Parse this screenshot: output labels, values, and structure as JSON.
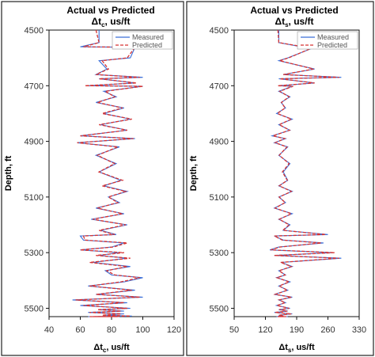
{
  "chart_data": [
    {
      "type": "line",
      "title": "Actual vs Predicted",
      "subtitle": "Δtc, us/ft",
      "xlabel": "Δtc, us/ft",
      "ylabel": "Depth, ft",
      "xlim": [
        40,
        120
      ],
      "ylim": [
        5530,
        4500
      ],
      "x_ticks": [
        40,
        60,
        80,
        100,
        120
      ],
      "y_ticks": [
        4500,
        4700,
        4900,
        5100,
        5300,
        5500
      ],
      "legend_position": "top-right",
      "series": [
        {
          "name": "Measured",
          "color": "#3b6fd8",
          "style": "solid",
          "x": [
            72,
            72,
            60,
            95,
            92,
            72,
            77,
            70,
            100,
            72,
            95,
            65,
            100,
            75,
            83,
            70,
            88,
            75,
            92,
            73,
            90,
            60,
            95,
            58,
            85,
            70,
            83,
            72,
            86,
            75,
            90,
            78,
            85,
            70,
            88,
            67,
            90,
            73,
            83,
            60,
            62,
            88,
            80,
            60,
            85,
            72,
            90,
            68,
            92,
            76,
            80,
            100,
            88,
            65,
            95,
            70,
            100,
            55,
            90,
            60,
            92,
            72,
            88,
            65,
            88,
            75,
            93,
            68,
            85,
            70,
            80,
            65,
            78
          ],
          "y": [
            4500,
            4545,
            4560,
            4562,
            4600,
            4610,
            4640,
            4660,
            4670,
            4675,
            4690,
            4700,
            4702,
            4720,
            4740,
            4760,
            4780,
            4800,
            4820,
            4840,
            4860,
            4880,
            4890,
            4905,
            4920,
            4950,
            4980,
            5010,
            5040,
            5060,
            5080,
            5100,
            5120,
            5140,
            5160,
            5180,
            5200,
            5220,
            5235,
            5240,
            5255,
            5265,
            5280,
            5290,
            5300,
            5310,
            5320,
            5335,
            5350,
            5365,
            5380,
            5390,
            5405,
            5420,
            5435,
            5450,
            5460,
            5470,
            5480,
            5490,
            5500,
            5505,
            5510,
            5515,
            5520,
            5525,
            5528,
            5530,
            5530,
            5530,
            5530,
            5530,
            5530
          ]
        },
        {
          "name": "Predicted",
          "color": "#d63333",
          "style": "dashed",
          "x": [
            70,
            72,
            62,
            95,
            90,
            74,
            78,
            70,
            98,
            72,
            96,
            63,
            100,
            76,
            82,
            71,
            87,
            74,
            93,
            72,
            90,
            60,
            94,
            58,
            84,
            71,
            82,
            72,
            87,
            74,
            89,
            78,
            84,
            71,
            87,
            68,
            89,
            72,
            82,
            62,
            63,
            90,
            81,
            60,
            88,
            70,
            92,
            66,
            90,
            77,
            82,
            98,
            86,
            66,
            93,
            70,
            98,
            57,
            88,
            62,
            90,
            71,
            86,
            66,
            86,
            74,
            92,
            68,
            84,
            70,
            80,
            66,
            78
          ],
          "y": [
            4500,
            4545,
            4560,
            4562,
            4600,
            4610,
            4640,
            4660,
            4670,
            4675,
            4690,
            4700,
            4702,
            4720,
            4740,
            4760,
            4780,
            4800,
            4820,
            4840,
            4860,
            4880,
            4890,
            4905,
            4920,
            4950,
            4980,
            5010,
            5040,
            5060,
            5080,
            5100,
            5120,
            5140,
            5160,
            5180,
            5200,
            5220,
            5235,
            5240,
            5255,
            5265,
            5280,
            5290,
            5300,
            5310,
            5320,
            5335,
            5350,
            5365,
            5380,
            5390,
            5405,
            5420,
            5435,
            5450,
            5460,
            5470,
            5480,
            5490,
            5500,
            5505,
            5510,
            5515,
            5520,
            5525,
            5528,
            5530,
            5530,
            5530,
            5530,
            5530,
            5530
          ]
        }
      ]
    },
    {
      "type": "line",
      "title": "Actual vs Predicted",
      "subtitle": "Δts, us/ft",
      "xlabel": "Δts, us/ft",
      "ylabel": "Depth, ft",
      "xlim": [
        50,
        330
      ],
      "ylim": [
        5530,
        4500
      ],
      "x_ticks": [
        50,
        120,
        190,
        260,
        330
      ],
      "y_ticks": [
        4500,
        4700,
        4900,
        5100,
        5300,
        5500
      ],
      "legend_position": "top-right",
      "series": [
        {
          "name": "Measured",
          "color": "#3b6fd8",
          "style": "solid",
          "x": [
            150,
            150,
            200,
            230,
            170,
            150,
            230,
            160,
            290,
            150,
            230,
            150,
            180,
            150,
            175,
            155,
            165,
            145,
            180,
            150,
            175,
            135,
            165,
            140,
            170,
            150,
            175,
            160,
            170,
            150,
            180,
            150,
            165,
            140,
            180,
            150,
            175,
            160,
            260,
            140,
            160,
            250,
            150,
            130,
            270,
            140,
            290,
            155,
            180,
            150,
            165,
            145,
            175,
            150,
            170,
            140,
            180,
            150,
            165,
            145,
            175,
            150,
            170,
            140,
            180,
            150,
            160,
            145,
            170,
            150,
            165,
            150,
            160
          ],
          "y": [
            4500,
            4545,
            4560,
            4562,
            4600,
            4610,
            4640,
            4660,
            4670,
            4675,
            4690,
            4700,
            4702,
            4720,
            4740,
            4760,
            4780,
            4800,
            4820,
            4840,
            4860,
            4880,
            4890,
            4905,
            4920,
            4950,
            4980,
            5010,
            5040,
            5060,
            5080,
            5100,
            5120,
            5140,
            5160,
            5180,
            5200,
            5220,
            5235,
            5240,
            5255,
            5265,
            5280,
            5290,
            5300,
            5310,
            5320,
            5335,
            5350,
            5365,
            5380,
            5390,
            5405,
            5420,
            5435,
            5450,
            5460,
            5470,
            5480,
            5490,
            5500,
            5505,
            5510,
            5515,
            5520,
            5525,
            5528,
            5530,
            5530,
            5530,
            5530,
            5530,
            5530
          ]
        },
        {
          "name": "Predicted",
          "color": "#d63333",
          "style": "dashed",
          "x": [
            148,
            150,
            205,
            228,
            172,
            152,
            228,
            160,
            285,
            152,
            230,
            148,
            182,
            152,
            173,
            156,
            164,
            147,
            178,
            151,
            174,
            137,
            163,
            142,
            168,
            151,
            173,
            158,
            169,
            151,
            178,
            151,
            164,
            142,
            178,
            151,
            173,
            159,
            255,
            140,
            158,
            245,
            152,
            132,
            275,
            140,
            285,
            154,
            178,
            151,
            164,
            146,
            173,
            151,
            169,
            142,
            178,
            151,
            164,
            146,
            173,
            151,
            169,
            142,
            178,
            151,
            160,
            146,
            168,
            151,
            164,
            151,
            160
          ],
          "y": [
            4500,
            4545,
            4560,
            4562,
            4600,
            4610,
            4640,
            4660,
            4670,
            4675,
            4690,
            4700,
            4702,
            4720,
            4740,
            4760,
            4780,
            4800,
            4820,
            4840,
            4860,
            4880,
            4890,
            4905,
            4920,
            4950,
            4980,
            5010,
            5040,
            5060,
            5080,
            5100,
            5120,
            5140,
            5160,
            5180,
            5200,
            5220,
            5235,
            5240,
            5255,
            5265,
            5280,
            5290,
            5300,
            5310,
            5320,
            5335,
            5350,
            5365,
            5380,
            5390,
            5405,
            5420,
            5435,
            5450,
            5460,
            5470,
            5480,
            5490,
            5500,
            5505,
            5510,
            5515,
            5520,
            5525,
            5528,
            5530,
            5530,
            5530,
            5530,
            5530,
            5530
          ]
        }
      ]
    }
  ]
}
